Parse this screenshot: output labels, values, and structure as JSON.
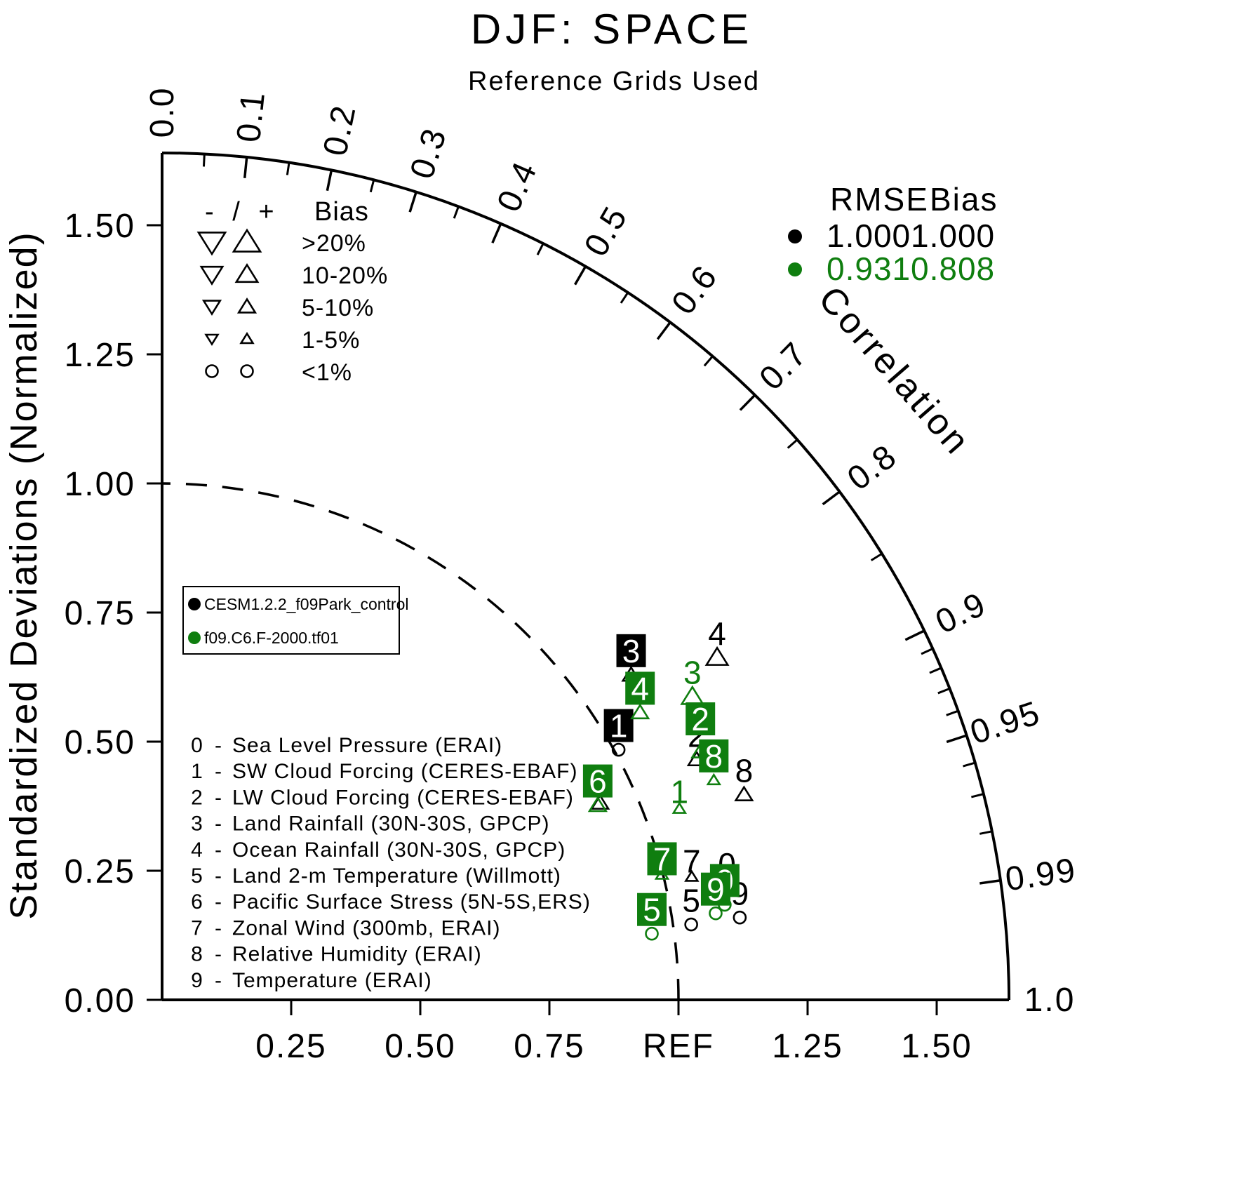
{
  "chart_data": {
    "type": "taylor",
    "title": "DJF: SPACE",
    "subtitle": "Reference Grids Used",
    "ylabel": "Standardized Deviations (Normalized)",
    "arc_label": "Correlation",
    "variable_separator": "-",
    "axes": {
      "max_std": 1.64,
      "ref_std": 1.0,
      "grid": false,
      "y_ticks": [
        {
          "value": 0.0,
          "label": "0.00"
        },
        {
          "value": 0.25,
          "label": "0.25"
        },
        {
          "value": 0.5,
          "label": "0.50"
        },
        {
          "value": 0.75,
          "label": "0.75"
        },
        {
          "value": 1.0,
          "label": "1.00"
        },
        {
          "value": 1.25,
          "label": "1.25"
        },
        {
          "value": 1.5,
          "label": "1.50"
        }
      ],
      "x_ticks": [
        {
          "value": 0.25,
          "label": "0.25"
        },
        {
          "value": 0.5,
          "label": "0.50"
        },
        {
          "value": 0.75,
          "label": "0.75"
        },
        {
          "value": 1.0,
          "label": "REF"
        },
        {
          "value": 1.25,
          "label": "1.25"
        },
        {
          "value": 1.5,
          "label": "1.50"
        }
      ],
      "corr_ticks": [
        {
          "value": 0.0,
          "label": "0.0"
        },
        {
          "value": 0.1,
          "label": "0.1"
        },
        {
          "value": 0.2,
          "label": "0.2"
        },
        {
          "value": 0.3,
          "label": "0.3"
        },
        {
          "value": 0.4,
          "label": "0.4"
        },
        {
          "value": 0.5,
          "label": "0.5"
        },
        {
          "value": 0.6,
          "label": "0.6"
        },
        {
          "value": 0.7,
          "label": "0.7"
        },
        {
          "value": 0.8,
          "label": "0.8"
        },
        {
          "value": 0.9,
          "label": "0.9"
        },
        {
          "value": 0.95,
          "label": "0.95"
        },
        {
          "value": 0.99,
          "label": "0.99"
        },
        {
          "value": 1.0,
          "label": "1.0"
        }
      ],
      "corr_minor_ticks": [
        0.05,
        0.15,
        0.25,
        0.35,
        0.45,
        0.55,
        0.65,
        0.75,
        0.85,
        0.91,
        0.92,
        0.93,
        0.94,
        0.96,
        0.97,
        0.98
      ]
    },
    "bias_legend": {
      "header_symbols": "- / +",
      "header_label": "Bias",
      "tiers": [
        {
          "label": ">20%",
          "symbol": "triangle",
          "half_size": 17
        },
        {
          "label": "10-20%",
          "symbol": "triangle",
          "half_size": 13.5
        },
        {
          "label": "5-10%",
          "symbol": "triangle",
          "half_size": 10.5
        },
        {
          "label": "1-5%",
          "symbol": "triangle",
          "half_size": 7.5
        },
        {
          "label": "<1%",
          "symbol": "circle",
          "half_size": 8.5
        }
      ]
    },
    "rmse_legend": {
      "header_rmse": "RMSE",
      "header_bias": "Bias",
      "rows": [
        {
          "model": "CESM1.2.2_f09Park_control",
          "color": "#000000",
          "rmse": "1.000",
          "bias": "1.000"
        },
        {
          "model": "f09.C6.F-2000.tf01",
          "color": "#0f7e0f",
          "rmse": "0.931",
          "bias": "0.808"
        }
      ]
    },
    "models": [
      {
        "name": "CESM1.2.2_f09Park_control",
        "color": "#000000"
      },
      {
        "name": "f09.C6.F-2000.tf01",
        "color": "#0f7e0f"
      }
    ],
    "variables": [
      {
        "id": "0",
        "label": "Sea Level Pressure (ERAI)"
      },
      {
        "id": "1",
        "label": "SW Cloud Forcing (CERES-EBAF)"
      },
      {
        "id": "2",
        "label": "LW Cloud Forcing (CERES-EBAF)"
      },
      {
        "id": "3",
        "label": "Land Rainfall (30N-30S, GPCP)"
      },
      {
        "id": "4",
        "label": "Ocean Rainfall (30N-30S, GPCP)"
      },
      {
        "id": "5",
        "label": "Land 2-m Temperature (Willmott)"
      },
      {
        "id": "6",
        "label": "Pacific Surface Stress (5N-5S,ERS)"
      },
      {
        "id": "7",
        "label": "Zonal Wind (300mb, ERAI)"
      },
      {
        "id": "8",
        "label": "Relative Humidity (ERAI)"
      },
      {
        "id": "9",
        "label": "Temperature (ERAI)"
      }
    ],
    "series": [
      {
        "model": "CESM1.2.2_f09Park_control",
        "color": "#000000",
        "points": [
          {
            "id": "0",
            "corr": 0.981,
            "std": 1.115,
            "bias": "<1%",
            "symbol": "circle",
            "boxed": false
          },
          {
            "id": "1",
            "corr": 0.877,
            "std": 1.008,
            "bias": "<1%",
            "symbol": "circle",
            "boxed": true
          },
          {
            "id": "2",
            "corr": 0.912,
            "std": 1.135,
            "bias": "5-10%",
            "symbol": "triangle-up",
            "boxed": false
          },
          {
            "id": "3",
            "corr": 0.822,
            "std": 1.105,
            "bias": "5-10%",
            "symbol": "triangle-up",
            "boxed": true
          },
          {
            "id": "4",
            "corr": 0.851,
            "std": 1.263,
            "bias": "10-20%",
            "symbol": "triangle-up",
            "boxed": false
          },
          {
            "id": "5",
            "corr": 0.99,
            "std": 1.035,
            "bias": "<1%",
            "symbol": "circle",
            "boxed": false
          },
          {
            "id": "6",
            "corr": 0.912,
            "std": 0.93,
            "bias": "5-10%",
            "symbol": "triangle-up",
            "boxed": false
          },
          {
            "id": "7",
            "corr": 0.974,
            "std": 1.053,
            "bias": "1-5%",
            "symbol": "triangle-up",
            "boxed": false,
            "label_dy": 12
          },
          {
            "id": "8",
            "corr": 0.943,
            "std": 1.195,
            "bias": "5-10%",
            "symbol": "triangle-up",
            "boxed": false
          },
          {
            "id": "9",
            "corr": 0.99,
            "std": 1.13,
            "bias": "<1%",
            "symbol": "circle",
            "boxed": false
          }
        ]
      },
      {
        "model": "f09.C6.F-2000.tf01",
        "color": "#0f7e0f",
        "points": [
          {
            "id": "0",
            "corr": 0.986,
            "std": 1.105,
            "bias": "<1%",
            "symbol": "circle",
            "boxed": true
          },
          {
            "id": "1",
            "corr": 0.938,
            "std": 1.068,
            "bias": "1-5%",
            "symbol": "triangle-up",
            "boxed": false,
            "label_dy": 10
          },
          {
            "id": "2",
            "corr": 0.908,
            "std": 1.148,
            "bias": "5-10%",
            "symbol": "triangle-up",
            "boxed": true,
            "label_dy": -12
          },
          {
            "id": "3",
            "corr": 0.868,
            "std": 1.183,
            "bias": "10-20%",
            "symbol": "triangle-up",
            "boxed": false
          },
          {
            "id": "4",
            "corr": 0.857,
            "std": 1.08,
            "bias": "5-10%",
            "symbol": "triangle-up",
            "boxed": true
          },
          {
            "id": "5",
            "corr": 0.991,
            "std": 0.957,
            "bias": "<1%",
            "symbol": "circle",
            "boxed": true
          },
          {
            "id": "6",
            "corr": 0.913,
            "std": 0.924,
            "bias": "5-10%",
            "symbol": "triangle-up",
            "boxed": true
          },
          {
            "id": "7",
            "corr": 0.97,
            "std": 0.998,
            "bias": "1-5%",
            "symbol": "triangle-up",
            "boxed": true,
            "label_dy": 12
          },
          {
            "id": "8",
            "corr": 0.929,
            "std": 1.15,
            "bias": "1-5%",
            "symbol": "triangle-up",
            "boxed": true
          },
          {
            "id": "9",
            "corr": 0.988,
            "std": 1.085,
            "bias": "<1%",
            "symbol": "circle",
            "boxed": true
          }
        ]
      }
    ]
  }
}
